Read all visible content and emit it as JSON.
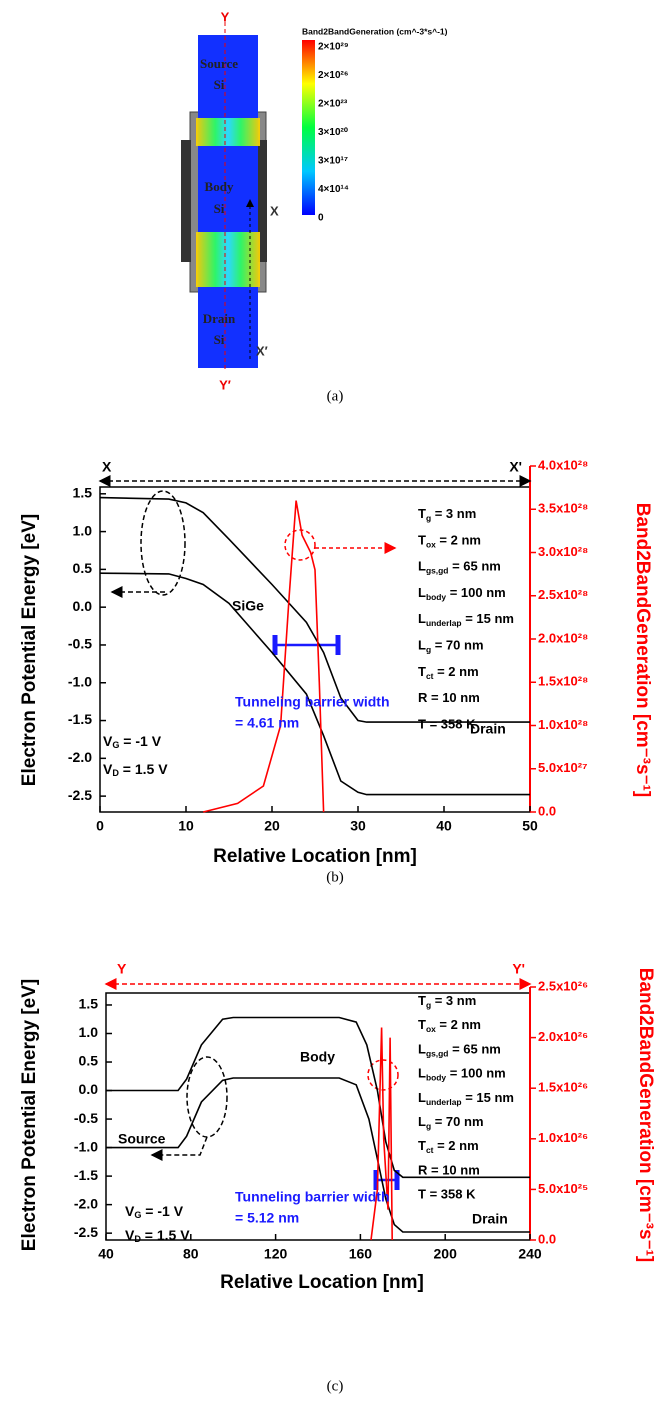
{
  "figure_a": {
    "caption": "(a)",
    "colorbar_title": "Band2BandGeneration (cm^-3*s^-1)",
    "colorbar_labels": [
      "2×10²⁹",
      "2×10²⁶",
      "2×10²³",
      "3×10²⁰",
      "3×10¹⁷",
      "4×10¹⁴",
      "0"
    ],
    "regions": [
      [
        "Source",
        "Si"
      ],
      [
        "Body",
        "Si"
      ],
      [
        "Drain",
        "Si"
      ]
    ],
    "axis_labels": {
      "y_top": "Y",
      "y_bottom": "Y′",
      "x_top": "X",
      "x_bottom": "X′"
    }
  },
  "chart_data": [
    {
      "type": "line",
      "caption": "(b)",
      "top_labels": [
        "X",
        "X'"
      ],
      "x_title": "Relative Location [nm]",
      "y_title": "Electron Potential Energy [eV]",
      "y2_title": "Band2BandGeneration [cm⁻³s⁻¹]",
      "xlim": [
        0,
        50
      ],
      "xticks": [
        0,
        10,
        20,
        30,
        40,
        50
      ],
      "ylim": [
        -2.71,
        1.59
      ],
      "yticks": [
        1.5,
        {
          "value": 1,
          "label": "1.0"
        },
        0.5,
        {
          "value": 0,
          "label": "0.0"
        },
        -0.5,
        {
          "value": -1,
          "label": "-1.0"
        },
        -1.5,
        {
          "value": -2,
          "label": "-2.0"
        },
        -2.5
      ],
      "y2lim": [
        0,
        4e+28
      ],
      "y2ticks": [
        {
          "value": 0,
          "label": "0.0"
        },
        {
          "value": 5e+27,
          "label": "5.0x10²⁷"
        },
        {
          "value": 1e+28,
          "label": "1.0x10²⁸"
        },
        {
          "value": 1.5e+28,
          "label": "1.5x10²⁸"
        },
        {
          "value": 2e+28,
          "label": "2.0x10²⁸"
        },
        {
          "value": 2.5e+28,
          "label": "2.5x10²⁸"
        },
        {
          "value": 3e+28,
          "label": "3.0x10²⁸"
        },
        {
          "value": 3.5e+28,
          "label": "3.5x10²⁸"
        },
        {
          "value": 4e+28,
          "label": "4.0x10²⁸"
        }
      ],
      "series": [
        {
          "color": "#000000",
          "x": [
            0,
            8,
            10,
            12,
            15,
            20,
            24,
            26,
            28,
            30,
            31,
            50
          ],
          "values": [
            1.45,
            1.43,
            1.38,
            1.25,
            0.9,
            0.3,
            -0.2,
            -0.6,
            -1.2,
            -1.5,
            -1.52,
            -1.52
          ]
        },
        {
          "color": "#000000",
          "x": [
            0,
            8,
            10,
            12,
            15,
            20,
            24,
            26,
            28,
            30,
            31,
            50
          ],
          "values": [
            0.45,
            0.44,
            0.38,
            0.3,
            0.05,
            -0.6,
            -1.15,
            -1.7,
            -2.3,
            -2.45,
            -2.48,
            -2.48
          ]
        },
        {
          "color": "#ff0000",
          "axis": "y2",
          "x": [
            12,
            16,
            19,
            21,
            22,
            22.8,
            23.5,
            24.5,
            25,
            25.5,
            26
          ],
          "values": [
            0,
            1e+27,
            3e+27,
            1e+28,
            2.5e+28,
            3.6e+28,
            3.2e+28,
            3e+28,
            2.8e+28,
            1.5e+28,
            0
          ]
        }
      ],
      "annotations": [
        "SiGe",
        "Tunneling barrier width",
        "= 4.61 nm",
        "Drain"
      ],
      "conditions": [
        {
          "symbol": "V",
          "sub": "G",
          "rest": " = -1 V"
        },
        {
          "symbol": "V",
          "sub": "D",
          "rest": " = 1.5 V"
        }
      ],
      "parameters": [
        {
          "symbol": "T",
          "sub": "g",
          "rest": " = 3 nm"
        },
        {
          "symbol": "T",
          "sub": "ox",
          "rest": " = 2 nm"
        },
        {
          "symbol": "L",
          "sub": "gs,gd",
          "rest": " = 65 nm"
        },
        {
          "symbol": "L",
          "sub": "body",
          "rest": " = 100 nm"
        },
        {
          "symbol": "L",
          "sub": "underlap",
          "rest": " = 15 nm"
        },
        {
          "symbol": "L",
          "sub": "g",
          "rest": " = 70 nm"
        },
        {
          "symbol": "T",
          "sub": "ct",
          "rest": " = 2 nm"
        },
        {
          "symbol": "R",
          "rest": " = 10 nm"
        },
        {
          "symbol": "T",
          "rest": " = 358 K"
        }
      ]
    },
    {
      "type": "line",
      "caption": "(c)",
      "top_labels": [
        "Y",
        "Y'"
      ],
      "x_title": "Relative Location [nm]",
      "y_title": "Electron Potential Energy [eV]",
      "y2_title": "Band2BandGeneration [cm⁻³s⁻¹]",
      "xlim": [
        40,
        240
      ],
      "xticks": [
        40,
        80,
        120,
        160,
        200,
        240
      ],
      "ylim": [
        -2.62,
        1.71
      ],
      "yticks": [
        1.5,
        {
          "value": 1,
          "label": "1.0"
        },
        0.5,
        {
          "value": 0,
          "label": "0.0"
        },
        -0.5,
        {
          "value": -1,
          "label": "-1.0"
        },
        -1.5,
        {
          "value": -2,
          "label": "-2.0"
        },
        -2.5
      ],
      "y2lim": [
        0,
        2.5e+26
      ],
      "y2ticks": [
        {
          "value": 0,
          "label": "0.0"
        },
        {
          "value": 5e+25,
          "label": "5.0x10²⁵"
        },
        {
          "value": 1e+26,
          "label": "1.0x10²⁶"
        },
        {
          "value": 1.5e+26,
          "label": "1.5x10²⁶"
        },
        {
          "value": 2e+26,
          "label": "2.0x10²⁶"
        },
        {
          "value": 2.5e+26,
          "label": "2.5x10²⁶"
        }
      ],
      "series": [
        {
          "color": "#000000",
          "x": [
            40,
            74,
            78,
            85,
            95,
            100,
            150,
            158,
            163,
            168,
            172,
            176,
            180,
            240
          ],
          "values": [
            0,
            0,
            0.2,
            0.8,
            1.25,
            1.28,
            1.28,
            1.2,
            0.8,
            0,
            -0.9,
            -1.4,
            -1.52,
            -1.52
          ]
        },
        {
          "color": "#000000",
          "x": [
            40,
            74,
            78,
            85,
            95,
            100,
            150,
            158,
            164,
            168,
            172,
            176,
            180,
            240
          ],
          "values": [
            -1,
            -1,
            -0.8,
            -0.2,
            0.18,
            0.22,
            0.22,
            0.1,
            -0.5,
            -1.2,
            -1.9,
            -2.35,
            -2.48,
            -2.48
          ]
        },
        {
          "color": "#ff0000",
          "axis": "y2",
          "x": [
            165,
            168,
            170,
            171,
            173,
            174,
            175
          ],
          "values": [
            0,
            5e+25,
            2.1e+26,
            1e+26,
            3e+25,
            2e+26,
            0
          ]
        }
      ],
      "annotations": [
        "Body",
        "Source",
        "Tunneling barrier width",
        "= 5.12 nm",
        "Drain"
      ],
      "conditions": [
        {
          "symbol": "V",
          "sub": "G",
          "rest": " = -1 V"
        },
        {
          "symbol": "V",
          "sub": "D",
          "rest": " = 1.5 V"
        }
      ],
      "parameters": [
        {
          "symbol": "T",
          "sub": "g",
          "rest": " = 3 nm"
        },
        {
          "symbol": "T",
          "sub": "ox",
          "rest": " = 2 nm"
        },
        {
          "symbol": "L",
          "sub": "gs,gd",
          "rest": " = 65 nm"
        },
        {
          "symbol": "L",
          "sub": "body",
          "rest": " = 100 nm"
        },
        {
          "symbol": "L",
          "sub": "underlap",
          "rest": " = 15 nm"
        },
        {
          "symbol": "L",
          "sub": "g",
          "rest": " = 70 nm"
        },
        {
          "symbol": "T",
          "sub": "ct",
          "rest": " = 2 nm"
        },
        {
          "symbol": "R",
          "rest": " = 10 nm"
        },
        {
          "symbol": "T",
          "rest": " = 358 K"
        }
      ]
    }
  ]
}
